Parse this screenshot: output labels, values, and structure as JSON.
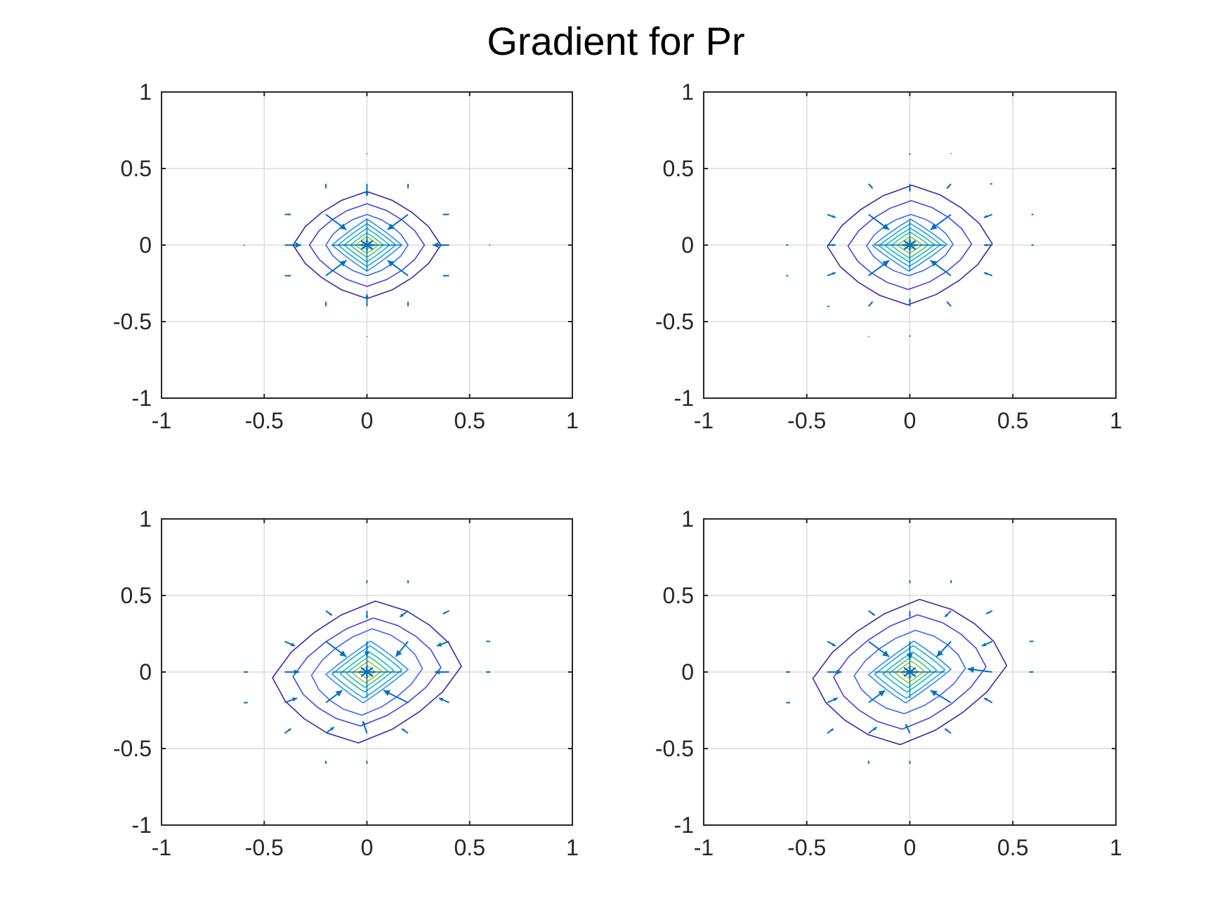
{
  "figure": {
    "title": "Gradient for Pr"
  },
  "chart_data": [
    {
      "type": "contour",
      "panel": "top-left",
      "xlim": [
        -1,
        1
      ],
      "ylim": [
        -1,
        1
      ],
      "xticks": [
        "-1",
        "-0.5",
        "0",
        "0.5",
        "1"
      ],
      "yticks": [
        "-1",
        "-0.5",
        "0",
        "0.5",
        "1"
      ],
      "grid": true,
      "center": [
        0,
        0
      ],
      "shear": 0,
      "contour_levels": [
        {
          "rx": 0.36,
          "ry": 0.35,
          "color": "#3e26a8"
        },
        {
          "rx": 0.28,
          "ry": 0.27,
          "color": "#4543e0"
        },
        {
          "rx": 0.2,
          "ry": 0.2,
          "color": "#3c67f7"
        },
        {
          "rx": 0.17,
          "ry": 0.17,
          "color": "#2d8ef5"
        },
        {
          "rx": 0.14,
          "ry": 0.14,
          "color": "#1fa8d8"
        },
        {
          "rx": 0.11,
          "ry": 0.11,
          "color": "#15b8b8"
        },
        {
          "rx": 0.08,
          "ry": 0.08,
          "color": "#33c48c"
        },
        {
          "rx": 0.055,
          "ry": 0.055,
          "color": "#8dc84c"
        },
        {
          "rx": 0.03,
          "ry": 0.03,
          "color": "#e0b93c"
        }
      ],
      "arrows": [
        {
          "x": -0.2,
          "y": 0.4,
          "u": 0.0,
          "v": -0.03
        },
        {
          "x": 0.2,
          "y": 0.4,
          "u": 0.0,
          "v": -0.03
        },
        {
          "x": -0.4,
          "y": 0.2,
          "u": 0.03,
          "v": 0.0
        },
        {
          "x": 0.4,
          "y": 0.2,
          "u": -0.03,
          "v": 0.0
        },
        {
          "x": -0.4,
          "y": -0.2,
          "u": 0.03,
          "v": 0.0
        },
        {
          "x": 0.4,
          "y": -0.2,
          "u": -0.03,
          "v": 0.0
        },
        {
          "x": -0.2,
          "y": -0.4,
          "u": 0.0,
          "v": 0.03
        },
        {
          "x": 0.2,
          "y": -0.4,
          "u": 0.0,
          "v": 0.03
        },
        {
          "x": -0.2,
          "y": 0.2,
          "u": 0.1,
          "v": -0.1
        },
        {
          "x": 0.2,
          "y": 0.2,
          "u": -0.1,
          "v": -0.1
        },
        {
          "x": -0.2,
          "y": -0.2,
          "u": 0.1,
          "v": 0.1
        },
        {
          "x": 0.2,
          "y": -0.2,
          "u": -0.1,
          "v": 0.1
        },
        {
          "x": -0.4,
          "y": 0.0,
          "u": 0.08,
          "v": 0.0
        },
        {
          "x": 0.4,
          "y": 0.0,
          "u": -0.08,
          "v": 0.0
        },
        {
          "x": 0.0,
          "y": 0.4,
          "u": 0.0,
          "v": -0.08
        },
        {
          "x": 0.0,
          "y": -0.4,
          "u": 0.0,
          "v": 0.08
        },
        {
          "x": -0.6,
          "y": 0.0,
          "u": 0.005,
          "v": 0.0
        },
        {
          "x": 0.6,
          "y": 0.0,
          "u": -0.005,
          "v": 0.0
        },
        {
          "x": 0.0,
          "y": 0.6,
          "u": 0.0,
          "v": -0.005
        },
        {
          "x": 0.0,
          "y": -0.6,
          "u": 0.0,
          "v": 0.005
        }
      ]
    },
    {
      "type": "contour",
      "panel": "top-right",
      "xlim": [
        -1,
        1
      ],
      "ylim": [
        -1,
        1
      ],
      "xticks": [
        "-1",
        "-0.5",
        "0",
        "0.5",
        "1"
      ],
      "yticks": [
        "-1",
        "-0.5",
        "0",
        "0.5",
        "1"
      ],
      "grid": true,
      "center": [
        0,
        0
      ],
      "shear": 0.05,
      "contour_levels": [
        {
          "rx": 0.4,
          "ry": 0.39,
          "color": "#3e26a8"
        },
        {
          "rx": 0.3,
          "ry": 0.29,
          "color": "#4543e0"
        },
        {
          "rx": 0.21,
          "ry": 0.2,
          "color": "#3c67f7"
        },
        {
          "rx": 0.18,
          "ry": 0.17,
          "color": "#2d8ef5"
        },
        {
          "rx": 0.15,
          "ry": 0.14,
          "color": "#1fa8d8"
        },
        {
          "rx": 0.12,
          "ry": 0.11,
          "color": "#15b8b8"
        },
        {
          "rx": 0.09,
          "ry": 0.085,
          "color": "#33c48c"
        },
        {
          "rx": 0.06,
          "ry": 0.055,
          "color": "#8dc84c"
        },
        {
          "rx": 0.03,
          "ry": 0.03,
          "color": "#e0b93c"
        }
      ],
      "arrows": [
        {
          "x": -0.2,
          "y": 0.4,
          "u": 0.02,
          "v": -0.03
        },
        {
          "x": 0.2,
          "y": 0.4,
          "u": -0.02,
          "v": -0.03
        },
        {
          "x": -0.4,
          "y": 0.2,
          "u": 0.04,
          "v": -0.02
        },
        {
          "x": 0.4,
          "y": 0.2,
          "u": -0.04,
          "v": -0.02
        },
        {
          "x": -0.4,
          "y": -0.2,
          "u": 0.04,
          "v": 0.02
        },
        {
          "x": 0.4,
          "y": -0.2,
          "u": -0.04,
          "v": 0.02
        },
        {
          "x": -0.2,
          "y": -0.4,
          "u": 0.02,
          "v": 0.03
        },
        {
          "x": 0.2,
          "y": -0.4,
          "u": -0.02,
          "v": 0.03
        },
        {
          "x": -0.2,
          "y": 0.2,
          "u": 0.1,
          "v": -0.1
        },
        {
          "x": 0.2,
          "y": 0.2,
          "u": -0.1,
          "v": -0.1
        },
        {
          "x": -0.2,
          "y": -0.2,
          "u": 0.1,
          "v": 0.1
        },
        {
          "x": 0.2,
          "y": -0.2,
          "u": -0.1,
          "v": 0.1
        },
        {
          "x": 0.0,
          "y": 0.4,
          "u": 0.0,
          "v": -0.05
        },
        {
          "x": 0.0,
          "y": -0.4,
          "u": 0.0,
          "v": 0.05
        },
        {
          "x": -0.4,
          "y": 0.0,
          "u": 0.04,
          "v": 0.0
        },
        {
          "x": 0.4,
          "y": 0.0,
          "u": -0.04,
          "v": 0.0
        },
        {
          "x": -0.6,
          "y": 0.0,
          "u": 0.01,
          "v": 0.0
        },
        {
          "x": 0.6,
          "y": 0.0,
          "u": -0.01,
          "v": 0.0
        },
        {
          "x": -0.6,
          "y": -0.2,
          "u": 0.01,
          "v": 0.0
        },
        {
          "x": 0.6,
          "y": 0.2,
          "u": -0.01,
          "v": 0.0
        },
        {
          "x": 0.0,
          "y": 0.6,
          "u": 0.0,
          "v": -0.01
        },
        {
          "x": 0.0,
          "y": -0.6,
          "u": 0.0,
          "v": 0.01
        },
        {
          "x": 0.2,
          "y": 0.6,
          "u": 0.0,
          "v": -0.005
        },
        {
          "x": -0.2,
          "y": -0.6,
          "u": 0.0,
          "v": 0.005
        },
        {
          "x": 0.4,
          "y": 0.4,
          "u": -0.01,
          "v": 0.0
        },
        {
          "x": -0.4,
          "y": -0.4,
          "u": 0.01,
          "v": 0.0
        }
      ]
    },
    {
      "type": "contour",
      "panel": "bottom-left",
      "xlim": [
        -1,
        1
      ],
      "ylim": [
        -1,
        1
      ],
      "xticks": [
        "-1",
        "-0.5",
        "0",
        "0.5",
        "1"
      ],
      "yticks": [
        "-1",
        "-0.5",
        "0",
        "0.5",
        "1"
      ],
      "grid": true,
      "center": [
        0,
        0
      ],
      "shear": 0.18,
      "contour_levels": [
        {
          "rx": 0.46,
          "ry": 0.46,
          "color": "#3e26a8"
        },
        {
          "rx": 0.36,
          "ry": 0.35,
          "color": "#4543e0"
        },
        {
          "rx": 0.27,
          "ry": 0.28,
          "color": "#3c67f7"
        },
        {
          "rx": 0.2,
          "ry": 0.2,
          "color": "#2d8ef5"
        },
        {
          "rx": 0.17,
          "ry": 0.17,
          "color": "#1fa8d8"
        },
        {
          "rx": 0.13,
          "ry": 0.13,
          "color": "#15b8b8"
        },
        {
          "rx": 0.1,
          "ry": 0.1,
          "color": "#33c48c"
        },
        {
          "rx": 0.07,
          "ry": 0.07,
          "color": "#8dc84c"
        },
        {
          "rx": 0.04,
          "ry": 0.04,
          "color": "#e0b93c"
        }
      ],
      "arrows": [
        {
          "x": -0.2,
          "y": 0.4,
          "u": 0.03,
          "v": -0.03
        },
        {
          "x": 0.2,
          "y": 0.4,
          "u": -0.04,
          "v": -0.04
        },
        {
          "x": 0.4,
          "y": 0.4,
          "u": -0.03,
          "v": -0.02
        },
        {
          "x": -0.4,
          "y": 0.2,
          "u": 0.05,
          "v": -0.03
        },
        {
          "x": 0.4,
          "y": 0.2,
          "u": -0.06,
          "v": -0.03
        },
        {
          "x": -0.2,
          "y": 0.2,
          "u": 0.1,
          "v": -0.1
        },
        {
          "x": 0.0,
          "y": 0.2,
          "u": 0.0,
          "v": -0.1
        },
        {
          "x": 0.2,
          "y": 0.2,
          "u": -0.06,
          "v": -0.1
        },
        {
          "x": -0.4,
          "y": 0.0,
          "u": 0.07,
          "v": 0.0
        },
        {
          "x": 0.4,
          "y": 0.0,
          "u": -0.07,
          "v": 0.0
        },
        {
          "x": -0.4,
          "y": -0.2,
          "u": 0.06,
          "v": 0.03
        },
        {
          "x": -0.2,
          "y": -0.2,
          "u": 0.08,
          "v": 0.08
        },
        {
          "x": 0.2,
          "y": -0.2,
          "u": -0.12,
          "v": 0.08
        },
        {
          "x": 0.4,
          "y": -0.2,
          "u": -0.05,
          "v": 0.03
        },
        {
          "x": -0.4,
          "y": -0.4,
          "u": 0.03,
          "v": 0.03
        },
        {
          "x": -0.2,
          "y": -0.4,
          "u": 0.04,
          "v": 0.04
        },
        {
          "x": 0.0,
          "y": -0.4,
          "u": -0.02,
          "v": 0.08
        },
        {
          "x": 0.2,
          "y": -0.4,
          "u": -0.03,
          "v": 0.03
        },
        {
          "x": 0.0,
          "y": 0.4,
          "u": 0.0,
          "v": -0.05
        },
        {
          "x": -0.6,
          "y": 0.0,
          "u": 0.02,
          "v": 0.0
        },
        {
          "x": 0.6,
          "y": 0.0,
          "u": -0.02,
          "v": 0.0
        },
        {
          "x": -0.6,
          "y": -0.2,
          "u": 0.02,
          "v": 0.0
        },
        {
          "x": 0.6,
          "y": 0.2,
          "u": -0.02,
          "v": 0.0
        },
        {
          "x": 0.0,
          "y": 0.6,
          "u": 0.0,
          "v": -0.02
        },
        {
          "x": 0.2,
          "y": 0.6,
          "u": 0.0,
          "v": -0.02
        },
        {
          "x": 0.0,
          "y": -0.6,
          "u": 0.0,
          "v": 0.02
        },
        {
          "x": -0.2,
          "y": -0.6,
          "u": 0.0,
          "v": 0.02
        }
      ]
    },
    {
      "type": "contour",
      "panel": "bottom-right",
      "xlim": [
        -1,
        1
      ],
      "ylim": [
        -1,
        1
      ],
      "xticks": [
        "-1",
        "-0.5",
        "0",
        "0.5",
        "1"
      ],
      "yticks": [
        "-1",
        "-0.5",
        "0",
        "0.5",
        "1"
      ],
      "grid": true,
      "center": [
        0,
        0
      ],
      "shear": 0.2,
      "contour_levels": [
        {
          "rx": 0.47,
          "ry": 0.47,
          "color": "#3e26a8"
        },
        {
          "rx": 0.37,
          "ry": 0.37,
          "color": "#4543e0"
        },
        {
          "rx": 0.27,
          "ry": 0.27,
          "color": "#3c67f7"
        },
        {
          "rx": 0.2,
          "ry": 0.2,
          "color": "#2d8ef5"
        },
        {
          "rx": 0.17,
          "ry": 0.17,
          "color": "#1fa8d8"
        },
        {
          "rx": 0.13,
          "ry": 0.13,
          "color": "#15b8b8"
        },
        {
          "rx": 0.1,
          "ry": 0.1,
          "color": "#33c48c"
        },
        {
          "rx": 0.07,
          "ry": 0.07,
          "color": "#8dc84c"
        },
        {
          "rx": 0.04,
          "ry": 0.04,
          "color": "#e0b93c"
        }
      ],
      "arrows": [
        {
          "x": -0.2,
          "y": 0.4,
          "u": 0.03,
          "v": -0.03
        },
        {
          "x": 0.0,
          "y": 0.4,
          "u": 0.0,
          "v": -0.04
        },
        {
          "x": 0.2,
          "y": 0.4,
          "u": -0.03,
          "v": -0.04
        },
        {
          "x": 0.4,
          "y": 0.4,
          "u": -0.03,
          "v": -0.02
        },
        {
          "x": -0.4,
          "y": 0.2,
          "u": 0.04,
          "v": -0.03
        },
        {
          "x": 0.4,
          "y": 0.2,
          "u": -0.05,
          "v": -0.03
        },
        {
          "x": -0.2,
          "y": 0.2,
          "u": 0.1,
          "v": -0.1
        },
        {
          "x": 0.0,
          "y": 0.2,
          "u": 0.0,
          "v": -0.12
        },
        {
          "x": 0.2,
          "y": 0.2,
          "u": -0.07,
          "v": -0.1
        },
        {
          "x": -0.4,
          "y": 0.0,
          "u": 0.07,
          "v": 0.0
        },
        {
          "x": 0.4,
          "y": 0.0,
          "u": -0.12,
          "v": 0.02
        },
        {
          "x": -0.4,
          "y": -0.2,
          "u": 0.05,
          "v": 0.03
        },
        {
          "x": -0.2,
          "y": -0.2,
          "u": 0.08,
          "v": 0.08
        },
        {
          "x": 0.2,
          "y": -0.2,
          "u": -0.1,
          "v": 0.08
        },
        {
          "x": 0.4,
          "y": -0.2,
          "u": -0.04,
          "v": 0.03
        },
        {
          "x": -0.4,
          "y": -0.4,
          "u": 0.03,
          "v": 0.03
        },
        {
          "x": -0.2,
          "y": -0.4,
          "u": 0.04,
          "v": 0.04
        },
        {
          "x": 0.0,
          "y": -0.4,
          "u": -0.02,
          "v": 0.06
        },
        {
          "x": 0.2,
          "y": -0.4,
          "u": -0.03,
          "v": 0.03
        },
        {
          "x": -0.6,
          "y": 0.0,
          "u": 0.02,
          "v": 0.0
        },
        {
          "x": 0.6,
          "y": 0.0,
          "u": -0.02,
          "v": 0.0
        },
        {
          "x": -0.6,
          "y": -0.2,
          "u": 0.02,
          "v": 0.0
        },
        {
          "x": 0.6,
          "y": 0.2,
          "u": -0.02,
          "v": 0.0
        },
        {
          "x": 0.0,
          "y": 0.6,
          "u": 0.0,
          "v": -0.02
        },
        {
          "x": 0.2,
          "y": 0.6,
          "u": 0.0,
          "v": -0.02
        },
        {
          "x": 0.0,
          "y": -0.6,
          "u": 0.0,
          "v": 0.02
        },
        {
          "x": -0.2,
          "y": -0.6,
          "u": 0.0,
          "v": 0.02
        }
      ]
    }
  ],
  "colors": {
    "arrow": "#0072bd",
    "axis": "#262626",
    "grid": "#dcdcdc"
  }
}
